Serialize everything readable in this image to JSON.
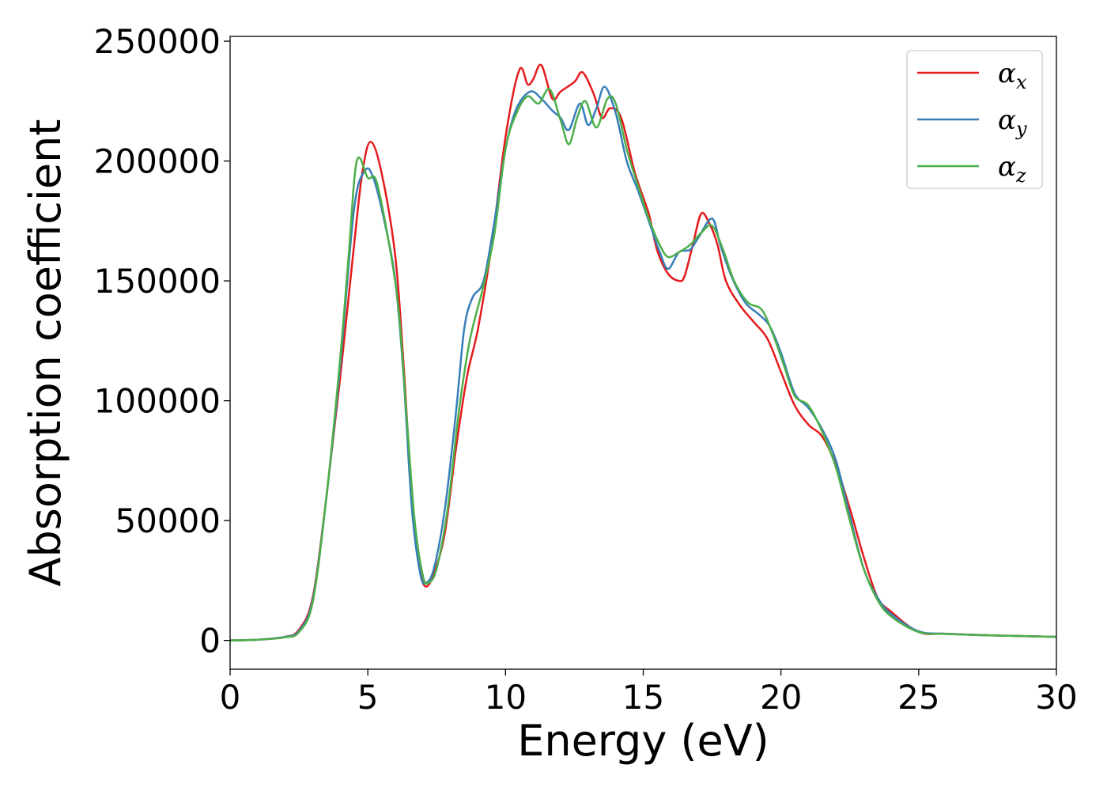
{
  "chart_data": {
    "type": "line",
    "title": "",
    "xlabel": "Energy (eV)",
    "ylabel": "Absorption coefficient",
    "xlim": [
      0,
      30
    ],
    "ylim": [
      -12000,
      252000
    ],
    "xticks": [
      0,
      5,
      10,
      15,
      20,
      25,
      30
    ],
    "yticks": [
      0,
      50000,
      100000,
      150000,
      200000,
      250000
    ],
    "grid": false,
    "legend_position": "top-right",
    "series": [
      {
        "name": "α",
        "subscript": "x",
        "color": "#e41a1c",
        "points": [
          [
            0,
            0
          ],
          [
            1,
            300
          ],
          [
            2,
            1500
          ],
          [
            2.5,
            4500
          ],
          [
            3,
            18000
          ],
          [
            3.5,
            60000
          ],
          [
            4,
            110000
          ],
          [
            4.5,
            165000
          ],
          [
            4.8,
            195000
          ],
          [
            5.1,
            208000
          ],
          [
            5.5,
            195000
          ],
          [
            6,
            160000
          ],
          [
            6.3,
            115000
          ],
          [
            6.6,
            60000
          ],
          [
            6.9,
            30000
          ],
          [
            7.1,
            22500
          ],
          [
            7.4,
            28000
          ],
          [
            7.8,
            45000
          ],
          [
            8.2,
            80000
          ],
          [
            8.6,
            110000
          ],
          [
            9,
            130000
          ],
          [
            9.5,
            165000
          ],
          [
            10,
            210000
          ],
          [
            10.5,
            238000
          ],
          [
            10.8,
            232000
          ],
          [
            11,
            234000
          ],
          [
            11.3,
            240000
          ],
          [
            11.7,
            226000
          ],
          [
            12,
            229000
          ],
          [
            12.5,
            233000
          ],
          [
            12.8,
            237000
          ],
          [
            13.2,
            228000
          ],
          [
            13.5,
            218000
          ],
          [
            13.8,
            222000
          ],
          [
            14.2,
            218000
          ],
          [
            14.7,
            195000
          ],
          [
            15.2,
            178000
          ],
          [
            15.5,
            163000
          ],
          [
            15.9,
            153000
          ],
          [
            16.3,
            150000
          ],
          [
            16.5,
            152000
          ],
          [
            16.8,
            165000
          ],
          [
            17.1,
            178000
          ],
          [
            17.4,
            174000
          ],
          [
            17.7,
            165000
          ],
          [
            18,
            150000
          ],
          [
            18.5,
            140000
          ],
          [
            19,
            133000
          ],
          [
            19.5,
            126000
          ],
          [
            20,
            112000
          ],
          [
            20.5,
            98000
          ],
          [
            21,
            90000
          ],
          [
            21.5,
            85000
          ],
          [
            22,
            73000
          ],
          [
            22.5,
            55000
          ],
          [
            23,
            35000
          ],
          [
            23.5,
            18000
          ],
          [
            24,
            12000
          ],
          [
            25,
            3500
          ],
          [
            26,
            2800
          ],
          [
            28,
            2000
          ],
          [
            30,
            1500
          ]
        ]
      },
      {
        "name": "α",
        "subscript": "y",
        "color": "#377eb8",
        "points": [
          [
            0,
            0
          ],
          [
            1,
            300
          ],
          [
            2,
            1500
          ],
          [
            2.5,
            4000
          ],
          [
            3,
            17000
          ],
          [
            3.5,
            60000
          ],
          [
            4,
            115000
          ],
          [
            4.5,
            180000
          ],
          [
            4.9,
            196000
          ],
          [
            5.2,
            193000
          ],
          [
            5.6,
            175000
          ],
          [
            6,
            150000
          ],
          [
            6.3,
            110000
          ],
          [
            6.6,
            55000
          ],
          [
            6.9,
            28000
          ],
          [
            7.1,
            24000
          ],
          [
            7.4,
            30000
          ],
          [
            7.8,
            55000
          ],
          [
            8.2,
            95000
          ],
          [
            8.5,
            130000
          ],
          [
            8.8,
            143000
          ],
          [
            9.2,
            150000
          ],
          [
            9.6,
            175000
          ],
          [
            10,
            205000
          ],
          [
            10.4,
            222000
          ],
          [
            10.9,
            229000
          ],
          [
            11.3,
            226000
          ],
          [
            11.7,
            221000
          ],
          [
            12,
            218000
          ],
          [
            12.3,
            213000
          ],
          [
            12.7,
            224000
          ],
          [
            13,
            215000
          ],
          [
            13.3,
            222000
          ],
          [
            13.6,
            231000
          ],
          [
            14,
            220000
          ],
          [
            14.4,
            200000
          ],
          [
            14.8,
            188000
          ],
          [
            15.2,
            175000
          ],
          [
            15.6,
            162000
          ],
          [
            15.9,
            155000
          ],
          [
            16.3,
            162000
          ],
          [
            16.7,
            163000
          ],
          [
            17,
            168000
          ],
          [
            17.5,
            176000
          ],
          [
            17.8,
            165000
          ],
          [
            18.2,
            152000
          ],
          [
            18.7,
            141000
          ],
          [
            19.2,
            136000
          ],
          [
            19.6,
            131000
          ],
          [
            20,
            120000
          ],
          [
            20.5,
            103000
          ],
          [
            21,
            97000
          ],
          [
            21.5,
            88000
          ],
          [
            22,
            75000
          ],
          [
            22.5,
            52000
          ],
          [
            23,
            30000
          ],
          [
            23.5,
            18000
          ],
          [
            24,
            11000
          ],
          [
            25,
            3800
          ],
          [
            26,
            2800
          ],
          [
            28,
            2000
          ],
          [
            30,
            1500
          ]
        ]
      },
      {
        "name": "α",
        "subscript": "z",
        "color": "#4daf4a",
        "points": [
          [
            0,
            0
          ],
          [
            1,
            300
          ],
          [
            2,
            1300
          ],
          [
            2.5,
            3500
          ],
          [
            3,
            16000
          ],
          [
            3.5,
            60000
          ],
          [
            4,
            118000
          ],
          [
            4.3,
            160000
          ],
          [
            4.6,
            200000
          ],
          [
            5,
            193000
          ],
          [
            5.3,
            192000
          ],
          [
            5.7,
            170000
          ],
          [
            6.1,
            140000
          ],
          [
            6.4,
            95000
          ],
          [
            6.7,
            50000
          ],
          [
            7,
            27000
          ],
          [
            7.2,
            24000
          ],
          [
            7.5,
            30000
          ],
          [
            7.9,
            55000
          ],
          [
            8.3,
            95000
          ],
          [
            8.7,
            125000
          ],
          [
            9.2,
            148000
          ],
          [
            9.6,
            170000
          ],
          [
            10,
            205000
          ],
          [
            10.4,
            220000
          ],
          [
            10.8,
            227000
          ],
          [
            11.2,
            224000
          ],
          [
            11.6,
            230000
          ],
          [
            12,
            217000
          ],
          [
            12.3,
            207000
          ],
          [
            12.6,
            218000
          ],
          [
            12.9,
            225000
          ],
          [
            13.3,
            214000
          ],
          [
            13.7,
            226000
          ],
          [
            14,
            224000
          ],
          [
            14.4,
            205000
          ],
          [
            14.8,
            190000
          ],
          [
            15.2,
            176000
          ],
          [
            15.6,
            165000
          ],
          [
            15.9,
            160000
          ],
          [
            16.3,
            162000
          ],
          [
            16.7,
            165000
          ],
          [
            17.1,
            170000
          ],
          [
            17.5,
            173000
          ],
          [
            17.9,
            163000
          ],
          [
            18.3,
            150000
          ],
          [
            18.8,
            141000
          ],
          [
            19.3,
            138000
          ],
          [
            19.7,
            128000
          ],
          [
            20.1,
            115000
          ],
          [
            20.5,
            102000
          ],
          [
            21,
            98000
          ],
          [
            21.5,
            87000
          ],
          [
            22,
            72000
          ],
          [
            22.5,
            50000
          ],
          [
            23,
            30000
          ],
          [
            23.5,
            17000
          ],
          [
            24,
            10000
          ],
          [
            25,
            3500
          ],
          [
            26,
            2700
          ],
          [
            28,
            2000
          ],
          [
            30,
            1500
          ]
        ]
      }
    ]
  }
}
